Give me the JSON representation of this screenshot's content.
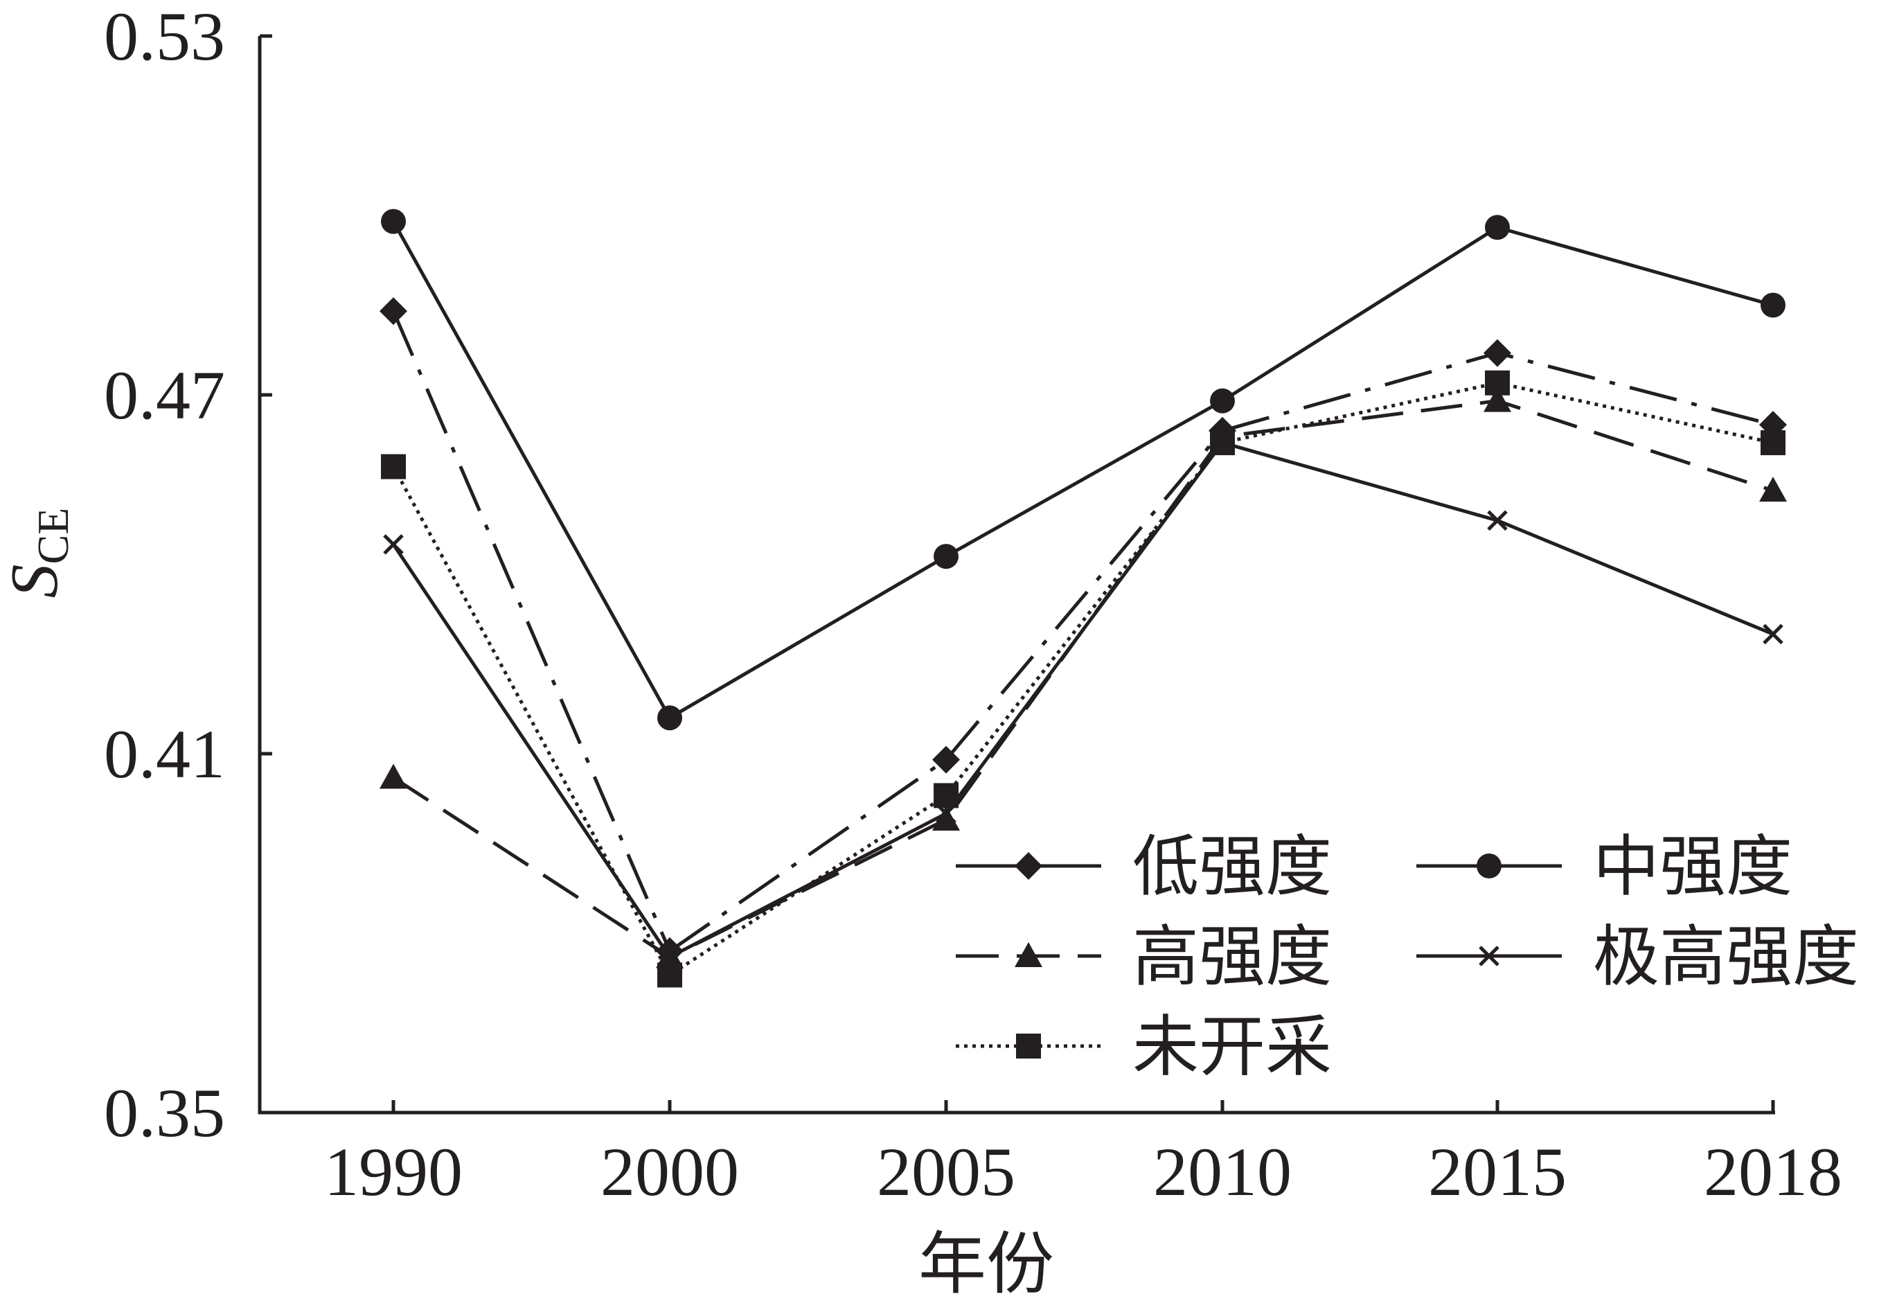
{
  "chart_data": {
    "type": "line",
    "xlabel": "年份",
    "ylabel": "S",
    "ylabel_sub": "CE",
    "x": [
      "1990",
      "2000",
      "2005",
      "2010",
      "2015",
      "2018"
    ],
    "ylim": [
      0.35,
      0.53
    ],
    "yticks": [
      "0.35",
      "0.41",
      "0.47",
      "0.53"
    ],
    "grid": false,
    "legend_position": "bottom-right",
    "series": [
      {
        "name": "低强度",
        "marker": "diamond",
        "dash": "solid",
        "values": [
          0.484,
          0.377,
          0.409,
          0.464,
          0.477,
          0.465
        ]
      },
      {
        "name": "中强度",
        "marker": "circle",
        "dash": "solid",
        "values": [
          0.499,
          0.416,
          0.443,
          0.469,
          0.498,
          0.485
        ]
      },
      {
        "name": "高强度",
        "marker": "triangle",
        "dash": "dashed",
        "values": [
          0.406,
          0.376,
          0.399,
          0.463,
          0.469,
          0.454
        ]
      },
      {
        "name": "极高强度",
        "marker": "x",
        "dash": "solid",
        "values": [
          0.445,
          0.376,
          0.4,
          0.462,
          0.449,
          0.43
        ]
      },
      {
        "name": "未开采",
        "marker": "square",
        "dash": "dotted",
        "values": [
          0.458,
          0.373,
          0.403,
          0.462,
          0.472,
          0.462
        ]
      }
    ],
    "colors": {
      "line": "#231f20"
    }
  }
}
